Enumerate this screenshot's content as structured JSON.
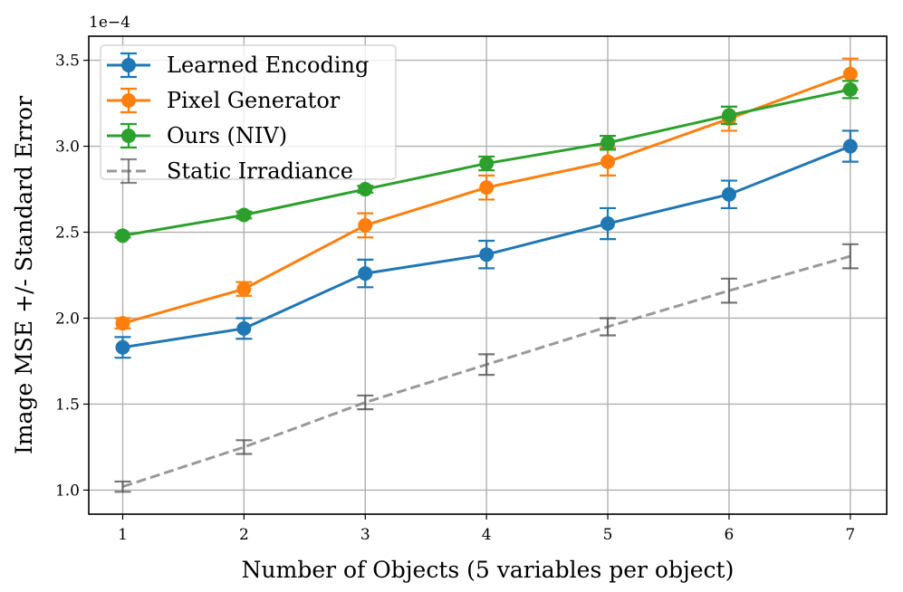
{
  "chart_data": {
    "type": "line",
    "title": "",
    "xlabel": "Number of Objects (5 variables per object)",
    "ylabel": "Image MSE +/- Standard Error",
    "y_offset_label": "1e−4",
    "x": [
      1,
      2,
      3,
      4,
      5,
      6,
      7
    ],
    "xticks": [
      "1",
      "2",
      "3",
      "4",
      "5",
      "6",
      "7"
    ],
    "yticks": [
      "1.0",
      "1.5",
      "2.0",
      "2.5",
      "3.0",
      "3.5"
    ],
    "ytick_values": [
      1.0,
      1.5,
      2.0,
      2.5,
      3.0,
      3.5
    ],
    "xlim": [
      0.72,
      7.3
    ],
    "ylim": [
      0.86,
      3.64
    ],
    "grid": true,
    "legend_position": "upper left",
    "series": [
      {
        "name": "Learned Encoding",
        "color": "#1f77b4",
        "style": "solid",
        "marker": "circle",
        "values": [
          1.83,
          1.94,
          2.26,
          2.37,
          2.55,
          2.72,
          3.0
        ],
        "errors": [
          0.06,
          0.06,
          0.08,
          0.08,
          0.09,
          0.08,
          0.09
        ]
      },
      {
        "name": "Pixel Generator",
        "color": "#ff7f0e",
        "style": "solid",
        "marker": "circle",
        "values": [
          1.97,
          2.17,
          2.54,
          2.76,
          2.91,
          3.16,
          3.42
        ],
        "errors": [
          0.03,
          0.04,
          0.07,
          0.07,
          0.08,
          0.07,
          0.09
        ]
      },
      {
        "name": "Ours (NIV)",
        "color": "#2ca02c",
        "style": "solid",
        "marker": "circle",
        "values": [
          2.48,
          2.6,
          2.75,
          2.9,
          3.02,
          3.18,
          3.33
        ],
        "errors": [
          0.01,
          0.02,
          0.02,
          0.04,
          0.04,
          0.05,
          0.05
        ]
      },
      {
        "name": "Static Irradiance",
        "color": "#7f7f7f",
        "style": "dashed",
        "marker": "none",
        "values": [
          1.02,
          1.25,
          1.51,
          1.73,
          1.95,
          2.16,
          2.36
        ],
        "errors": [
          0.03,
          0.04,
          0.04,
          0.06,
          0.05,
          0.07,
          0.07
        ]
      }
    ]
  }
}
